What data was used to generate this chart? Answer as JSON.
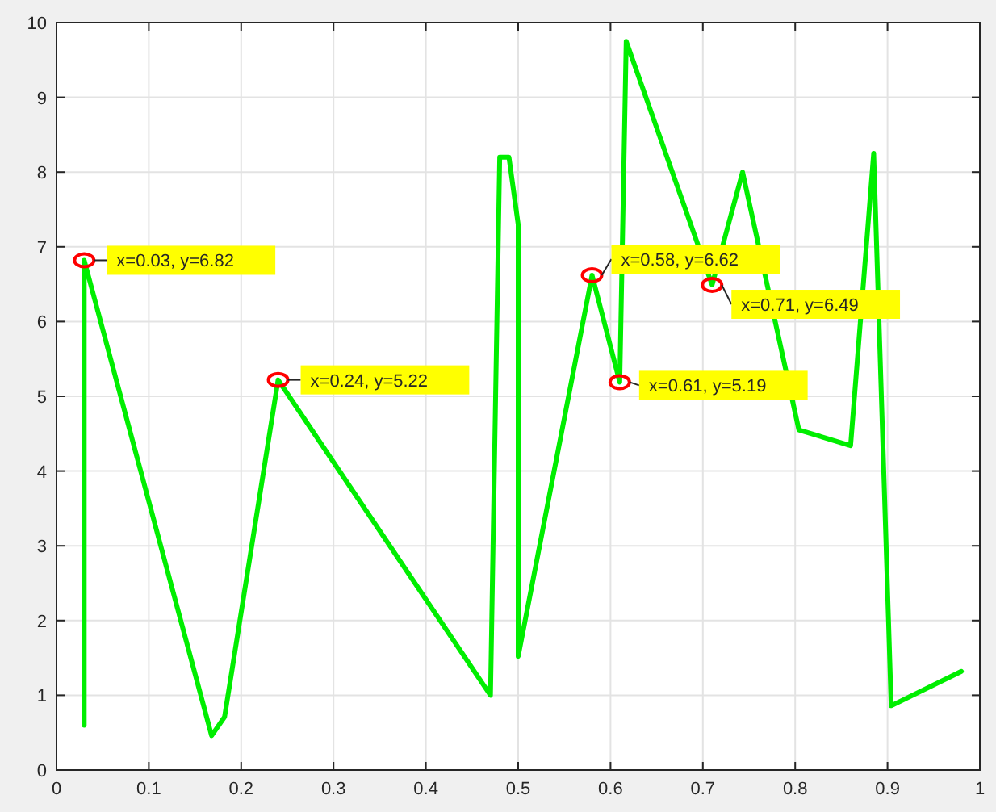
{
  "chart_data": {
    "type": "line",
    "xlim": [
      0,
      1
    ],
    "ylim": [
      0,
      10
    ],
    "xticks": [
      0,
      0.1,
      0.2,
      0.3,
      0.4,
      0.5,
      0.6,
      0.7,
      0.8,
      0.9,
      1
    ],
    "yticks": [
      0,
      1,
      2,
      3,
      4,
      5,
      6,
      7,
      8,
      9,
      10
    ],
    "grid": true,
    "series": [
      {
        "color": "#00ee00",
        "marker": "none",
        "x": [
          0.03,
          0.03,
          0.168,
          0.182,
          0.24,
          0.47,
          0.48,
          0.49,
          0.5,
          0.5,
          0.58,
          0.61,
          0.617,
          0.71,
          0.743,
          0.804,
          0.86,
          0.885,
          0.904,
          0.98
        ],
        "values": [
          0.6,
          6.82,
          0.46,
          0.71,
          5.22,
          1.0,
          8.2,
          8.2,
          7.3,
          1.52,
          6.62,
          5.19,
          9.75,
          6.49,
          8.0,
          4.55,
          4.34,
          8.25,
          0.86,
          1.32
        ]
      },
      {
        "type": "scatter",
        "color": "#ff0000",
        "marker": "circle",
        "x": [
          0.03,
          0.24,
          0.58,
          0.61,
          0.71
        ],
        "values": [
          6.82,
          5.22,
          6.62,
          5.19,
          6.49
        ]
      }
    ],
    "annotations": [
      {
        "text": "x=0.03, y=6.82",
        "x": 0.03,
        "y": 6.82
      },
      {
        "text": "x=0.24, y=5.22",
        "x": 0.24,
        "y": 5.22
      },
      {
        "text": "x=0.58, y=6.62",
        "x": 0.58,
        "y": 6.62
      },
      {
        "text": "x=0.61, y=5.19",
        "x": 0.61,
        "y": 5.19
      },
      {
        "text": "x=0.71, y=6.49",
        "x": 0.71,
        "y": 6.49
      }
    ]
  }
}
